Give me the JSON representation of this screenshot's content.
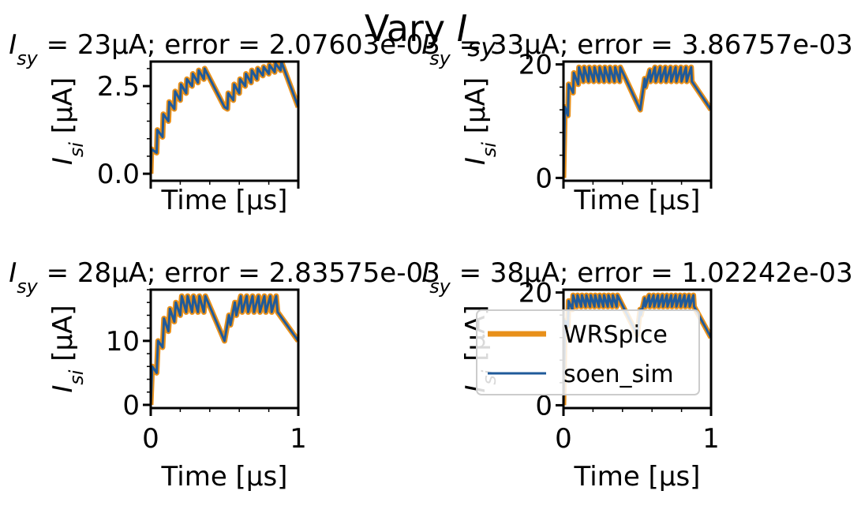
{
  "figure": {
    "suptitle": "Vary I_sy",
    "colors": {
      "wrspice": "#E8901A",
      "soen_sim": "#1F5A9A"
    },
    "legend": {
      "location": "lower-right subplot",
      "entries": [
        "WRSpice",
        "soen_sim"
      ]
    }
  },
  "chart_data": [
    {
      "type": "line",
      "title": "I_sy = 23μA; error = 2.07603e-03",
      "xlabel": "Time [μs]",
      "ylabel": "I_si [μA]",
      "xlim": [
        0,
        1
      ],
      "ylim": [
        -0.2,
        3.2
      ],
      "yticks": [
        0.0,
        2.5
      ],
      "ytick_labels": [
        "0.0",
        "2.5"
      ],
      "xticks": [],
      "xtick_labels": [],
      "series": [
        {
          "name": "WRSpice",
          "x": [
            0.0,
            0.005,
            0.04,
            0.045,
            0.08,
            0.085,
            0.12,
            0.125,
            0.16,
            0.165,
            0.2,
            0.205,
            0.24,
            0.245,
            0.28,
            0.285,
            0.32,
            0.325,
            0.36,
            0.365,
            0.5,
            0.52,
            0.525,
            0.56,
            0.565,
            0.6,
            0.605,
            0.64,
            0.645,
            0.68,
            0.685,
            0.72,
            0.725,
            0.76,
            0.765,
            0.8,
            0.805,
            0.84,
            0.845,
            0.88,
            0.885,
            1.0
          ],
          "y": [
            0.0,
            0.7,
            0.6,
            1.25,
            1.05,
            1.7,
            1.5,
            2.05,
            1.85,
            2.35,
            2.1,
            2.55,
            2.3,
            2.7,
            2.5,
            2.85,
            2.6,
            2.95,
            2.7,
            3.0,
            1.9,
            1.85,
            2.3,
            2.1,
            2.55,
            2.3,
            2.7,
            2.5,
            2.85,
            2.6,
            2.95,
            2.7,
            3.0,
            2.8,
            3.05,
            2.85,
            3.1,
            2.9,
            3.15,
            2.95,
            3.2,
            1.9
          ]
        },
        {
          "name": "soen_sim",
          "x": [
            0.0,
            0.005,
            0.04,
            0.045,
            0.08,
            0.085,
            0.12,
            0.125,
            0.16,
            0.165,
            0.2,
            0.205,
            0.24,
            0.245,
            0.28,
            0.285,
            0.32,
            0.325,
            0.36,
            0.365,
            0.5,
            0.52,
            0.525,
            0.56,
            0.565,
            0.6,
            0.605,
            0.64,
            0.645,
            0.68,
            0.685,
            0.72,
            0.725,
            0.76,
            0.765,
            0.8,
            0.805,
            0.84,
            0.845,
            0.88,
            0.885,
            1.0
          ],
          "y": [
            0.0,
            0.7,
            0.6,
            1.25,
            1.05,
            1.7,
            1.5,
            2.05,
            1.85,
            2.35,
            2.1,
            2.55,
            2.3,
            2.7,
            2.5,
            2.85,
            2.6,
            2.95,
            2.7,
            3.0,
            1.9,
            1.85,
            2.3,
            2.1,
            2.55,
            2.3,
            2.7,
            2.5,
            2.85,
            2.6,
            2.95,
            2.7,
            3.0,
            2.8,
            3.05,
            2.85,
            3.1,
            2.9,
            3.15,
            2.95,
            3.2,
            1.9
          ]
        }
      ]
    },
    {
      "type": "line",
      "title": "I_sy = 33μA; error = 3.86757e-03",
      "xlabel": "Time [μs]",
      "ylabel": "I_si [μA]",
      "xlim": [
        0,
        1
      ],
      "ylim": [
        -0.5,
        20.5
      ],
      "yticks": [
        0,
        20
      ],
      "ytick_labels": [
        "0",
        "20"
      ],
      "xticks": [],
      "xtick_labels": [],
      "series": [
        {
          "name": "WRSpice",
          "x": [
            0.0,
            0.01,
            0.03,
            0.035,
            0.065,
            0.07,
            0.1,
            0.105,
            0.135,
            0.14,
            0.17,
            0.175,
            0.205,
            0.21,
            0.24,
            0.245,
            0.275,
            0.28,
            0.31,
            0.315,
            0.345,
            0.35,
            0.38,
            0.385,
            0.52,
            0.55,
            0.555,
            0.585,
            0.59,
            0.62,
            0.625,
            0.655,
            0.66,
            0.69,
            0.695,
            0.725,
            0.73,
            0.76,
            0.765,
            0.795,
            0.8,
            0.83,
            0.835,
            0.865,
            0.87,
            1.0
          ],
          "y": [
            0.0,
            12.5,
            11.0,
            16.5,
            15.0,
            18.5,
            16.5,
            19.5,
            17.0,
            19.5,
            17.0,
            19.5,
            17.0,
            19.5,
            17.0,
            19.5,
            17.0,
            19.5,
            17.0,
            19.5,
            17.0,
            19.5,
            17.0,
            19.5,
            12.0,
            17.5,
            16.0,
            19.0,
            17.0,
            19.5,
            17.0,
            19.5,
            17.0,
            19.5,
            17.0,
            19.5,
            17.0,
            19.5,
            17.0,
            19.5,
            17.0,
            19.5,
            17.0,
            19.5,
            17.0,
            12.0
          ]
        },
        {
          "name": "soen_sim",
          "x": [
            0.0,
            0.01,
            0.03,
            0.035,
            0.065,
            0.07,
            0.1,
            0.105,
            0.135,
            0.14,
            0.17,
            0.175,
            0.205,
            0.21,
            0.24,
            0.245,
            0.275,
            0.28,
            0.31,
            0.315,
            0.345,
            0.35,
            0.38,
            0.385,
            0.52,
            0.55,
            0.555,
            0.585,
            0.59,
            0.62,
            0.625,
            0.655,
            0.66,
            0.69,
            0.695,
            0.725,
            0.73,
            0.76,
            0.765,
            0.795,
            0.8,
            0.83,
            0.835,
            0.865,
            0.87,
            1.0
          ],
          "y": [
            0.0,
            12.5,
            11.0,
            16.5,
            15.0,
            18.5,
            16.5,
            19.5,
            17.0,
            19.5,
            17.0,
            19.5,
            17.0,
            19.5,
            17.0,
            19.5,
            17.0,
            19.5,
            17.0,
            19.5,
            17.0,
            19.5,
            17.0,
            19.5,
            12.0,
            17.5,
            16.0,
            19.0,
            17.0,
            19.5,
            17.0,
            19.5,
            17.0,
            19.5,
            17.0,
            19.5,
            17.0,
            19.5,
            17.0,
            19.5,
            17.0,
            19.5,
            17.0,
            19.5,
            17.0,
            12.0
          ]
        }
      ]
    },
    {
      "type": "line",
      "title": "I_sy = 28μA; error = 2.83575e-03",
      "xlabel": "Time [μs]",
      "ylabel": "I_si [μA]",
      "xlim": [
        0,
        1
      ],
      "ylim": [
        -0.5,
        18.0
      ],
      "yticks": [
        0,
        10
      ],
      "ytick_labels": [
        "0",
        "10"
      ],
      "xticks": [
        0,
        1
      ],
      "xtick_labels": [
        "0",
        "1"
      ],
      "series": [
        {
          "name": "WRSpice",
          "x": [
            0.0,
            0.01,
            0.04,
            0.05,
            0.08,
            0.09,
            0.12,
            0.13,
            0.16,
            0.17,
            0.2,
            0.21,
            0.24,
            0.25,
            0.28,
            0.29,
            0.32,
            0.33,
            0.36,
            0.37,
            0.5,
            0.53,
            0.54,
            0.57,
            0.58,
            0.61,
            0.62,
            0.65,
            0.66,
            0.69,
            0.7,
            0.73,
            0.74,
            0.77,
            0.78,
            0.81,
            0.82,
            0.85,
            0.86,
            1.0
          ],
          "y": [
            0.0,
            6.0,
            5.0,
            10.0,
            9.0,
            13.5,
            11.5,
            15.0,
            13.0,
            16.0,
            14.0,
            17.0,
            14.5,
            17.0,
            14.5,
            17.0,
            14.5,
            17.0,
            14.5,
            17.0,
            10.0,
            14.0,
            12.5,
            16.0,
            14.0,
            17.0,
            14.5,
            17.0,
            14.5,
            17.0,
            14.5,
            17.0,
            14.5,
            17.0,
            14.5,
            17.0,
            14.5,
            17.0,
            14.5,
            10.0
          ]
        },
        {
          "name": "soen_sim",
          "x": [
            0.0,
            0.01,
            0.04,
            0.05,
            0.08,
            0.09,
            0.12,
            0.13,
            0.16,
            0.17,
            0.2,
            0.21,
            0.24,
            0.25,
            0.28,
            0.29,
            0.32,
            0.33,
            0.36,
            0.37,
            0.5,
            0.53,
            0.54,
            0.57,
            0.58,
            0.61,
            0.62,
            0.65,
            0.66,
            0.69,
            0.7,
            0.73,
            0.74,
            0.77,
            0.78,
            0.81,
            0.82,
            0.85,
            0.86,
            1.0
          ],
          "y": [
            0.0,
            6.0,
            5.0,
            10.0,
            9.0,
            13.5,
            11.5,
            15.0,
            13.0,
            16.0,
            14.0,
            17.0,
            14.5,
            17.0,
            14.5,
            17.0,
            14.5,
            17.0,
            14.5,
            17.0,
            10.0,
            14.0,
            12.5,
            16.0,
            14.0,
            17.0,
            14.5,
            17.0,
            14.5,
            17.0,
            14.5,
            17.0,
            14.5,
            17.0,
            14.5,
            17.0,
            14.5,
            17.0,
            14.5,
            10.0
          ]
        }
      ]
    },
    {
      "type": "line",
      "title": "I_sy = 38μA; error = 1.02242e-03",
      "xlabel": "Time [μs]",
      "ylabel": "I_si [μA]",
      "xlim": [
        0,
        1
      ],
      "ylim": [
        -0.5,
        20.5
      ],
      "yticks": [
        0,
        20
      ],
      "ytick_labels": [
        "0",
        "20"
      ],
      "xticks": [
        0,
        1
      ],
      "xtick_labels": [
        "0",
        "1"
      ],
      "series": [
        {
          "name": "WRSpice",
          "x": [
            0.0,
            0.01,
            0.03,
            0.035,
            0.06,
            0.065,
            0.09,
            0.095,
            0.12,
            0.125,
            0.15,
            0.155,
            0.18,
            0.185,
            0.21,
            0.215,
            0.24,
            0.245,
            0.27,
            0.275,
            0.3,
            0.305,
            0.33,
            0.335,
            0.36,
            0.365,
            0.5,
            0.52,
            0.525,
            0.55,
            0.555,
            0.58,
            0.585,
            0.61,
            0.615,
            0.64,
            0.645,
            0.67,
            0.675,
            0.7,
            0.705,
            0.73,
            0.735,
            0.76,
            0.765,
            0.79,
            0.795,
            0.82,
            0.825,
            0.85,
            0.855,
            0.88,
            0.885,
            1.0
          ],
          "y": [
            0.0,
            15.0,
            14.0,
            18.5,
            17.0,
            19.5,
            17.5,
            19.5,
            17.5,
            19.5,
            17.5,
            19.5,
            17.5,
            19.5,
            17.5,
            19.5,
            17.5,
            19.5,
            17.5,
            19.5,
            17.5,
            19.5,
            17.5,
            19.5,
            17.5,
            19.5,
            12.5,
            17.0,
            16.0,
            19.0,
            17.5,
            19.5,
            17.5,
            19.5,
            17.5,
            19.5,
            17.5,
            19.5,
            17.5,
            19.5,
            17.5,
            19.5,
            17.5,
            19.5,
            17.5,
            19.5,
            17.5,
            19.5,
            17.5,
            19.5,
            17.5,
            19.5,
            17.5,
            12.0
          ]
        },
        {
          "name": "soen_sim",
          "x": [
            0.0,
            0.01,
            0.03,
            0.035,
            0.06,
            0.065,
            0.09,
            0.095,
            0.12,
            0.125,
            0.15,
            0.155,
            0.18,
            0.185,
            0.21,
            0.215,
            0.24,
            0.245,
            0.27,
            0.275,
            0.3,
            0.305,
            0.33,
            0.335,
            0.36,
            0.365,
            0.5,
            0.52,
            0.525,
            0.55,
            0.555,
            0.58,
            0.585,
            0.61,
            0.615,
            0.64,
            0.645,
            0.67,
            0.675,
            0.7,
            0.705,
            0.73,
            0.735,
            0.76,
            0.765,
            0.79,
            0.795,
            0.82,
            0.825,
            0.85,
            0.855,
            0.88,
            0.885,
            1.0
          ],
          "y": [
            0.0,
            15.0,
            14.0,
            18.5,
            17.0,
            19.5,
            17.5,
            19.5,
            17.5,
            19.5,
            17.5,
            19.5,
            17.5,
            19.5,
            17.5,
            19.5,
            17.5,
            19.5,
            17.5,
            19.5,
            17.5,
            19.5,
            17.5,
            19.5,
            17.5,
            19.5,
            12.5,
            17.0,
            16.0,
            19.0,
            17.5,
            19.5,
            17.5,
            19.5,
            17.5,
            19.5,
            17.5,
            19.5,
            17.5,
            19.5,
            17.5,
            19.5,
            17.5,
            19.5,
            17.5,
            19.5,
            17.5,
            19.5,
            17.5,
            19.5,
            17.5,
            19.5,
            17.5,
            12.0
          ]
        }
      ]
    }
  ]
}
